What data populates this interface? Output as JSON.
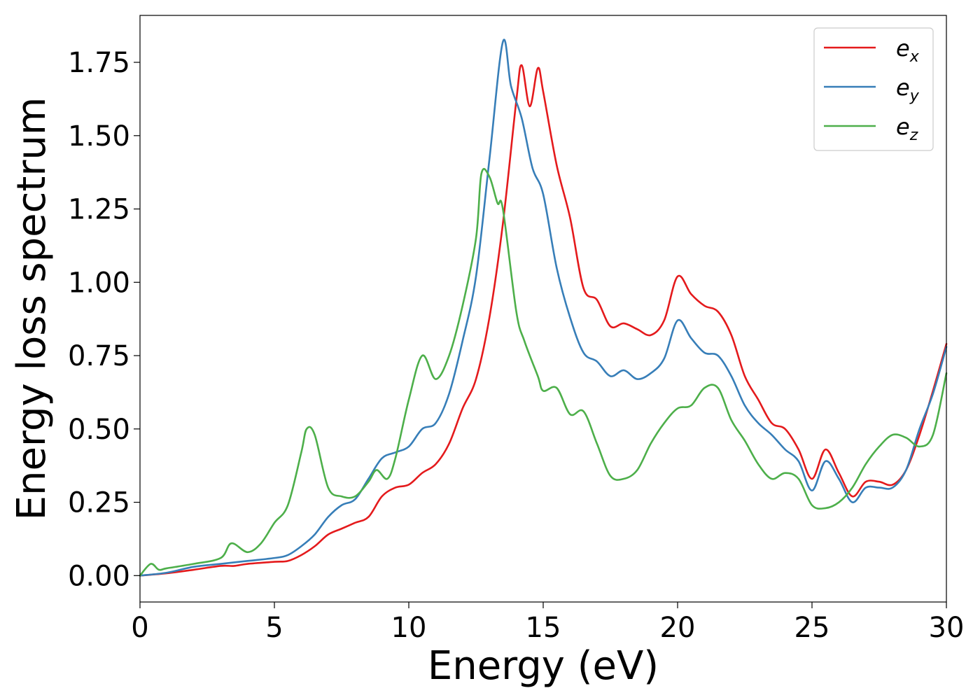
{
  "chart_data": {
    "type": "line",
    "xlabel": "Energy (eV)",
    "ylabel": "Energy loss spectrum",
    "xlim": [
      0,
      30
    ],
    "ylim": [
      -0.09,
      1.91
    ],
    "xticks": [
      0,
      5,
      10,
      15,
      20,
      25,
      30
    ],
    "yticks": [
      0.0,
      0.25,
      0.5,
      0.75,
      1.0,
      1.25,
      1.5,
      1.75
    ],
    "xtick_labels": [
      "0",
      "5",
      "10",
      "15",
      "20",
      "25",
      "30"
    ],
    "ytick_labels": [
      "0.00",
      "0.25",
      "0.50",
      "0.75",
      "1.00",
      "1.25",
      "1.50",
      "1.75"
    ],
    "grid": false,
    "legend_position": "top-right",
    "series": [
      {
        "name": "e_x",
        "label_base": "e",
        "label_sub": "x",
        "color": "#e41a1c",
        "points": [
          [
            0,
            0
          ],
          [
            1,
            0.008
          ],
          [
            2,
            0.02
          ],
          [
            3,
            0.033
          ],
          [
            3.5,
            0.033
          ],
          [
            4,
            0.04
          ],
          [
            5,
            0.047
          ],
          [
            5.5,
            0.05
          ],
          [
            6,
            0.07
          ],
          [
            6.5,
            0.1
          ],
          [
            7,
            0.14
          ],
          [
            7.5,
            0.16
          ],
          [
            8,
            0.18
          ],
          [
            8.5,
            0.2
          ],
          [
            9,
            0.27
          ],
          [
            9.5,
            0.3
          ],
          [
            10,
            0.31
          ],
          [
            10.5,
            0.35
          ],
          [
            11,
            0.38
          ],
          [
            11.5,
            0.45
          ],
          [
            12,
            0.57
          ],
          [
            12.5,
            0.67
          ],
          [
            13,
            0.88
          ],
          [
            13.5,
            1.2
          ],
          [
            14,
            1.62
          ],
          [
            14.2,
            1.74
          ],
          [
            14.5,
            1.6
          ],
          [
            14.8,
            1.73
          ],
          [
            15,
            1.65
          ],
          [
            15.5,
            1.4
          ],
          [
            16,
            1.22
          ],
          [
            16.5,
            0.98
          ],
          [
            17,
            0.94
          ],
          [
            17.5,
            0.85
          ],
          [
            18,
            0.86
          ],
          [
            18.5,
            0.84
          ],
          [
            19,
            0.82
          ],
          [
            19.5,
            0.87
          ],
          [
            20,
            1.02
          ],
          [
            20.5,
            0.96
          ],
          [
            21,
            0.92
          ],
          [
            21.5,
            0.9
          ],
          [
            22,
            0.82
          ],
          [
            22.5,
            0.68
          ],
          [
            23,
            0.6
          ],
          [
            23.5,
            0.52
          ],
          [
            24,
            0.5
          ],
          [
            24.5,
            0.43
          ],
          [
            25,
            0.33
          ],
          [
            25.5,
            0.43
          ],
          [
            26,
            0.35
          ],
          [
            26.5,
            0.27
          ],
          [
            27,
            0.32
          ],
          [
            27.5,
            0.32
          ],
          [
            28,
            0.31
          ],
          [
            28.5,
            0.36
          ],
          [
            29,
            0.48
          ],
          [
            29.5,
            0.63
          ],
          [
            30,
            0.79
          ]
        ]
      },
      {
        "name": "e_y",
        "label_base": "e",
        "label_sub": "y",
        "color": "#377eb8",
        "points": [
          [
            0,
            0
          ],
          [
            1,
            0.01
          ],
          [
            2,
            0.03
          ],
          [
            3,
            0.04
          ],
          [
            4,
            0.05
          ],
          [
            5,
            0.06
          ],
          [
            5.5,
            0.07
          ],
          [
            6,
            0.1
          ],
          [
            6.5,
            0.14
          ],
          [
            7,
            0.2
          ],
          [
            7.5,
            0.24
          ],
          [
            8,
            0.26
          ],
          [
            8.5,
            0.33
          ],
          [
            9,
            0.4
          ],
          [
            9.5,
            0.42
          ],
          [
            10,
            0.44
          ],
          [
            10.5,
            0.5
          ],
          [
            11,
            0.52
          ],
          [
            11.5,
            0.62
          ],
          [
            12,
            0.8
          ],
          [
            12.5,
            1.02
          ],
          [
            13,
            1.42
          ],
          [
            13.5,
            1.82
          ],
          [
            13.8,
            1.67
          ],
          [
            14.2,
            1.56
          ],
          [
            14.6,
            1.39
          ],
          [
            15,
            1.3
          ],
          [
            15.5,
            1.05
          ],
          [
            16,
            0.88
          ],
          [
            16.5,
            0.76
          ],
          [
            17,
            0.73
          ],
          [
            17.5,
            0.68
          ],
          [
            18,
            0.7
          ],
          [
            18.5,
            0.67
          ],
          [
            19,
            0.69
          ],
          [
            19.5,
            0.74
          ],
          [
            20,
            0.87
          ],
          [
            20.5,
            0.81
          ],
          [
            21,
            0.76
          ],
          [
            21.5,
            0.75
          ],
          [
            22,
            0.68
          ],
          [
            22.5,
            0.58
          ],
          [
            23,
            0.52
          ],
          [
            23.5,
            0.48
          ],
          [
            24,
            0.43
          ],
          [
            24.5,
            0.39
          ],
          [
            25,
            0.29
          ],
          [
            25.5,
            0.39
          ],
          [
            26,
            0.33
          ],
          [
            26.5,
            0.25
          ],
          [
            27,
            0.3
          ],
          [
            27.5,
            0.3
          ],
          [
            28,
            0.3
          ],
          [
            28.5,
            0.36
          ],
          [
            29,
            0.5
          ],
          [
            29.5,
            0.62
          ],
          [
            30,
            0.78
          ]
        ]
      },
      {
        "name": "e_z",
        "label_base": "e",
        "label_sub": "z",
        "color": "#4daf4a",
        "points": [
          [
            0,
            0
          ],
          [
            0.4,
            0.04
          ],
          [
            0.7,
            0.02
          ],
          [
            1,
            0.025
          ],
          [
            2,
            0.04
          ],
          [
            3,
            0.06
          ],
          [
            3.4,
            0.11
          ],
          [
            4,
            0.08
          ],
          [
            4.5,
            0.11
          ],
          [
            5,
            0.18
          ],
          [
            5.5,
            0.24
          ],
          [
            6,
            0.42
          ],
          [
            6.2,
            0.5
          ],
          [
            6.5,
            0.48
          ],
          [
            7,
            0.3
          ],
          [
            7.5,
            0.27
          ],
          [
            8,
            0.27
          ],
          [
            8.5,
            0.32
          ],
          [
            8.8,
            0.36
          ],
          [
            9.2,
            0.33
          ],
          [
            9.5,
            0.4
          ],
          [
            10,
            0.6
          ],
          [
            10.5,
            0.75
          ],
          [
            11,
            0.67
          ],
          [
            11.5,
            0.75
          ],
          [
            12,
            0.92
          ],
          [
            12.5,
            1.15
          ],
          [
            12.7,
            1.37
          ],
          [
            13,
            1.36
          ],
          [
            13.3,
            1.27
          ],
          [
            13.5,
            1.25
          ],
          [
            14,
            0.9
          ],
          [
            14.3,
            0.8
          ],
          [
            14.8,
            0.68
          ],
          [
            15,
            0.63
          ],
          [
            15.5,
            0.64
          ],
          [
            16,
            0.55
          ],
          [
            16.5,
            0.56
          ],
          [
            17,
            0.45
          ],
          [
            17.5,
            0.34
          ],
          [
            18,
            0.33
          ],
          [
            18.5,
            0.36
          ],
          [
            19,
            0.45
          ],
          [
            19.5,
            0.52
          ],
          [
            20,
            0.57
          ],
          [
            20.5,
            0.58
          ],
          [
            21,
            0.64
          ],
          [
            21.5,
            0.64
          ],
          [
            22,
            0.53
          ],
          [
            22.5,
            0.46
          ],
          [
            23,
            0.38
          ],
          [
            23.5,
            0.33
          ],
          [
            24,
            0.35
          ],
          [
            24.5,
            0.33
          ],
          [
            25,
            0.24
          ],
          [
            25.5,
            0.23
          ],
          [
            26,
            0.25
          ],
          [
            26.5,
            0.3
          ],
          [
            27,
            0.38
          ],
          [
            27.5,
            0.44
          ],
          [
            28,
            0.48
          ],
          [
            28.5,
            0.47
          ],
          [
            29,
            0.44
          ],
          [
            29.5,
            0.48
          ],
          [
            30,
            0.69
          ]
        ]
      }
    ]
  }
}
